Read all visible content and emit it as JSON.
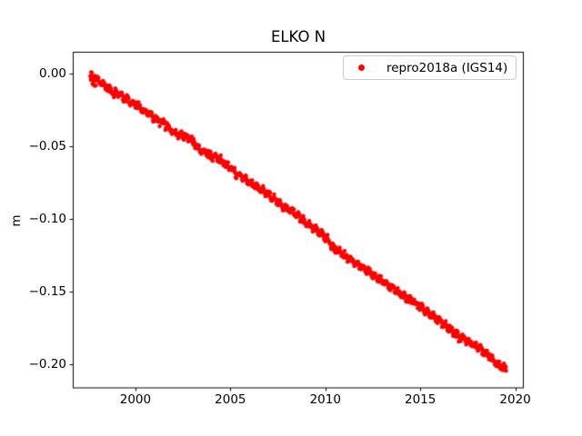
{
  "figure": {
    "background": "#ffffff",
    "axes_color": "#000000"
  },
  "chart_data": {
    "type": "scatter",
    "title": "ELKO N",
    "xlabel": "",
    "ylabel": "m",
    "xlim": [
      1996.7,
      2020.45
    ],
    "ylim": [
      -0.216,
      0.015
    ],
    "grid": false,
    "x_ticks": [
      2000,
      2005,
      2010,
      2015,
      2020
    ],
    "x_tick_labels": [
      "2000",
      "2005",
      "2010",
      "2015",
      "2020"
    ],
    "y_ticks": [
      0.0,
      -0.05,
      -0.1,
      -0.15,
      -0.2
    ],
    "y_tick_labels": [
      "0.00",
      "−0.05",
      "−0.10",
      "−0.15",
      "−0.20"
    ],
    "legend": {
      "position": "upper right",
      "entries": [
        {
          "label": "repro2018a (IGS14)",
          "color": "#ff0000",
          "marker": "dot"
        }
      ]
    },
    "series": [
      {
        "name": "repro2018a (IGS14)",
        "color": "#ff0000",
        "marker": "point",
        "marker_radius_px": 2.2,
        "sample_step_yr": 0.02,
        "scatter_halfwidth_m": 0.0021,
        "start_noise_halfwidth_m": 0.006,
        "texture_amp_m": 0.0012,
        "texture_period_yr": 0.31,
        "noise_seed": 42,
        "points": [
          [
            1997.62,
            -0.0015
          ],
          [
            1998.0,
            -0.0045
          ],
          [
            1998.5,
            -0.009
          ],
          [
            1999.0,
            -0.0135
          ],
          [
            1999.5,
            -0.0165
          ],
          [
            2000.0,
            -0.0215
          ],
          [
            2000.5,
            -0.026
          ],
          [
            2001.0,
            -0.0305
          ],
          [
            2001.5,
            -0.034
          ],
          [
            2002.0,
            -0.04
          ],
          [
            2002.5,
            -0.0425
          ],
          [
            2003.0,
            -0.0465
          ],
          [
            2003.5,
            -0.053
          ],
          [
            2004.0,
            -0.056
          ],
          [
            2004.5,
            -0.0595
          ],
          [
            2005.0,
            -0.065
          ],
          [
            2005.5,
            -0.07
          ],
          [
            2006.0,
            -0.0745
          ],
          [
            2006.5,
            -0.078
          ],
          [
            2007.0,
            -0.0835
          ],
          [
            2007.5,
            -0.088
          ],
          [
            2008.0,
            -0.0925
          ],
          [
            2008.5,
            -0.097
          ],
          [
            2009.0,
            -0.1025
          ],
          [
            2009.5,
            -0.107
          ],
          [
            2010.0,
            -0.112
          ],
          [
            2010.5,
            -0.1205
          ],
          [
            2011.0,
            -0.125
          ],
          [
            2011.5,
            -0.129
          ],
          [
            2012.0,
            -0.1335
          ],
          [
            2012.5,
            -0.138
          ],
          [
            2013.0,
            -0.1425
          ],
          [
            2013.5,
            -0.147
          ],
          [
            2014.0,
            -0.1515
          ],
          [
            2014.5,
            -0.156
          ],
          [
            2015.0,
            -0.16
          ],
          [
            2015.5,
            -0.1655
          ],
          [
            2016.0,
            -0.17
          ],
          [
            2016.5,
            -0.175
          ],
          [
            2017.0,
            -0.18
          ],
          [
            2017.5,
            -0.184
          ],
          [
            2018.0,
            -0.1875
          ],
          [
            2018.5,
            -0.1925
          ],
          [
            2019.0,
            -0.199
          ],
          [
            2019.52,
            -0.2025
          ]
        ]
      }
    ]
  }
}
